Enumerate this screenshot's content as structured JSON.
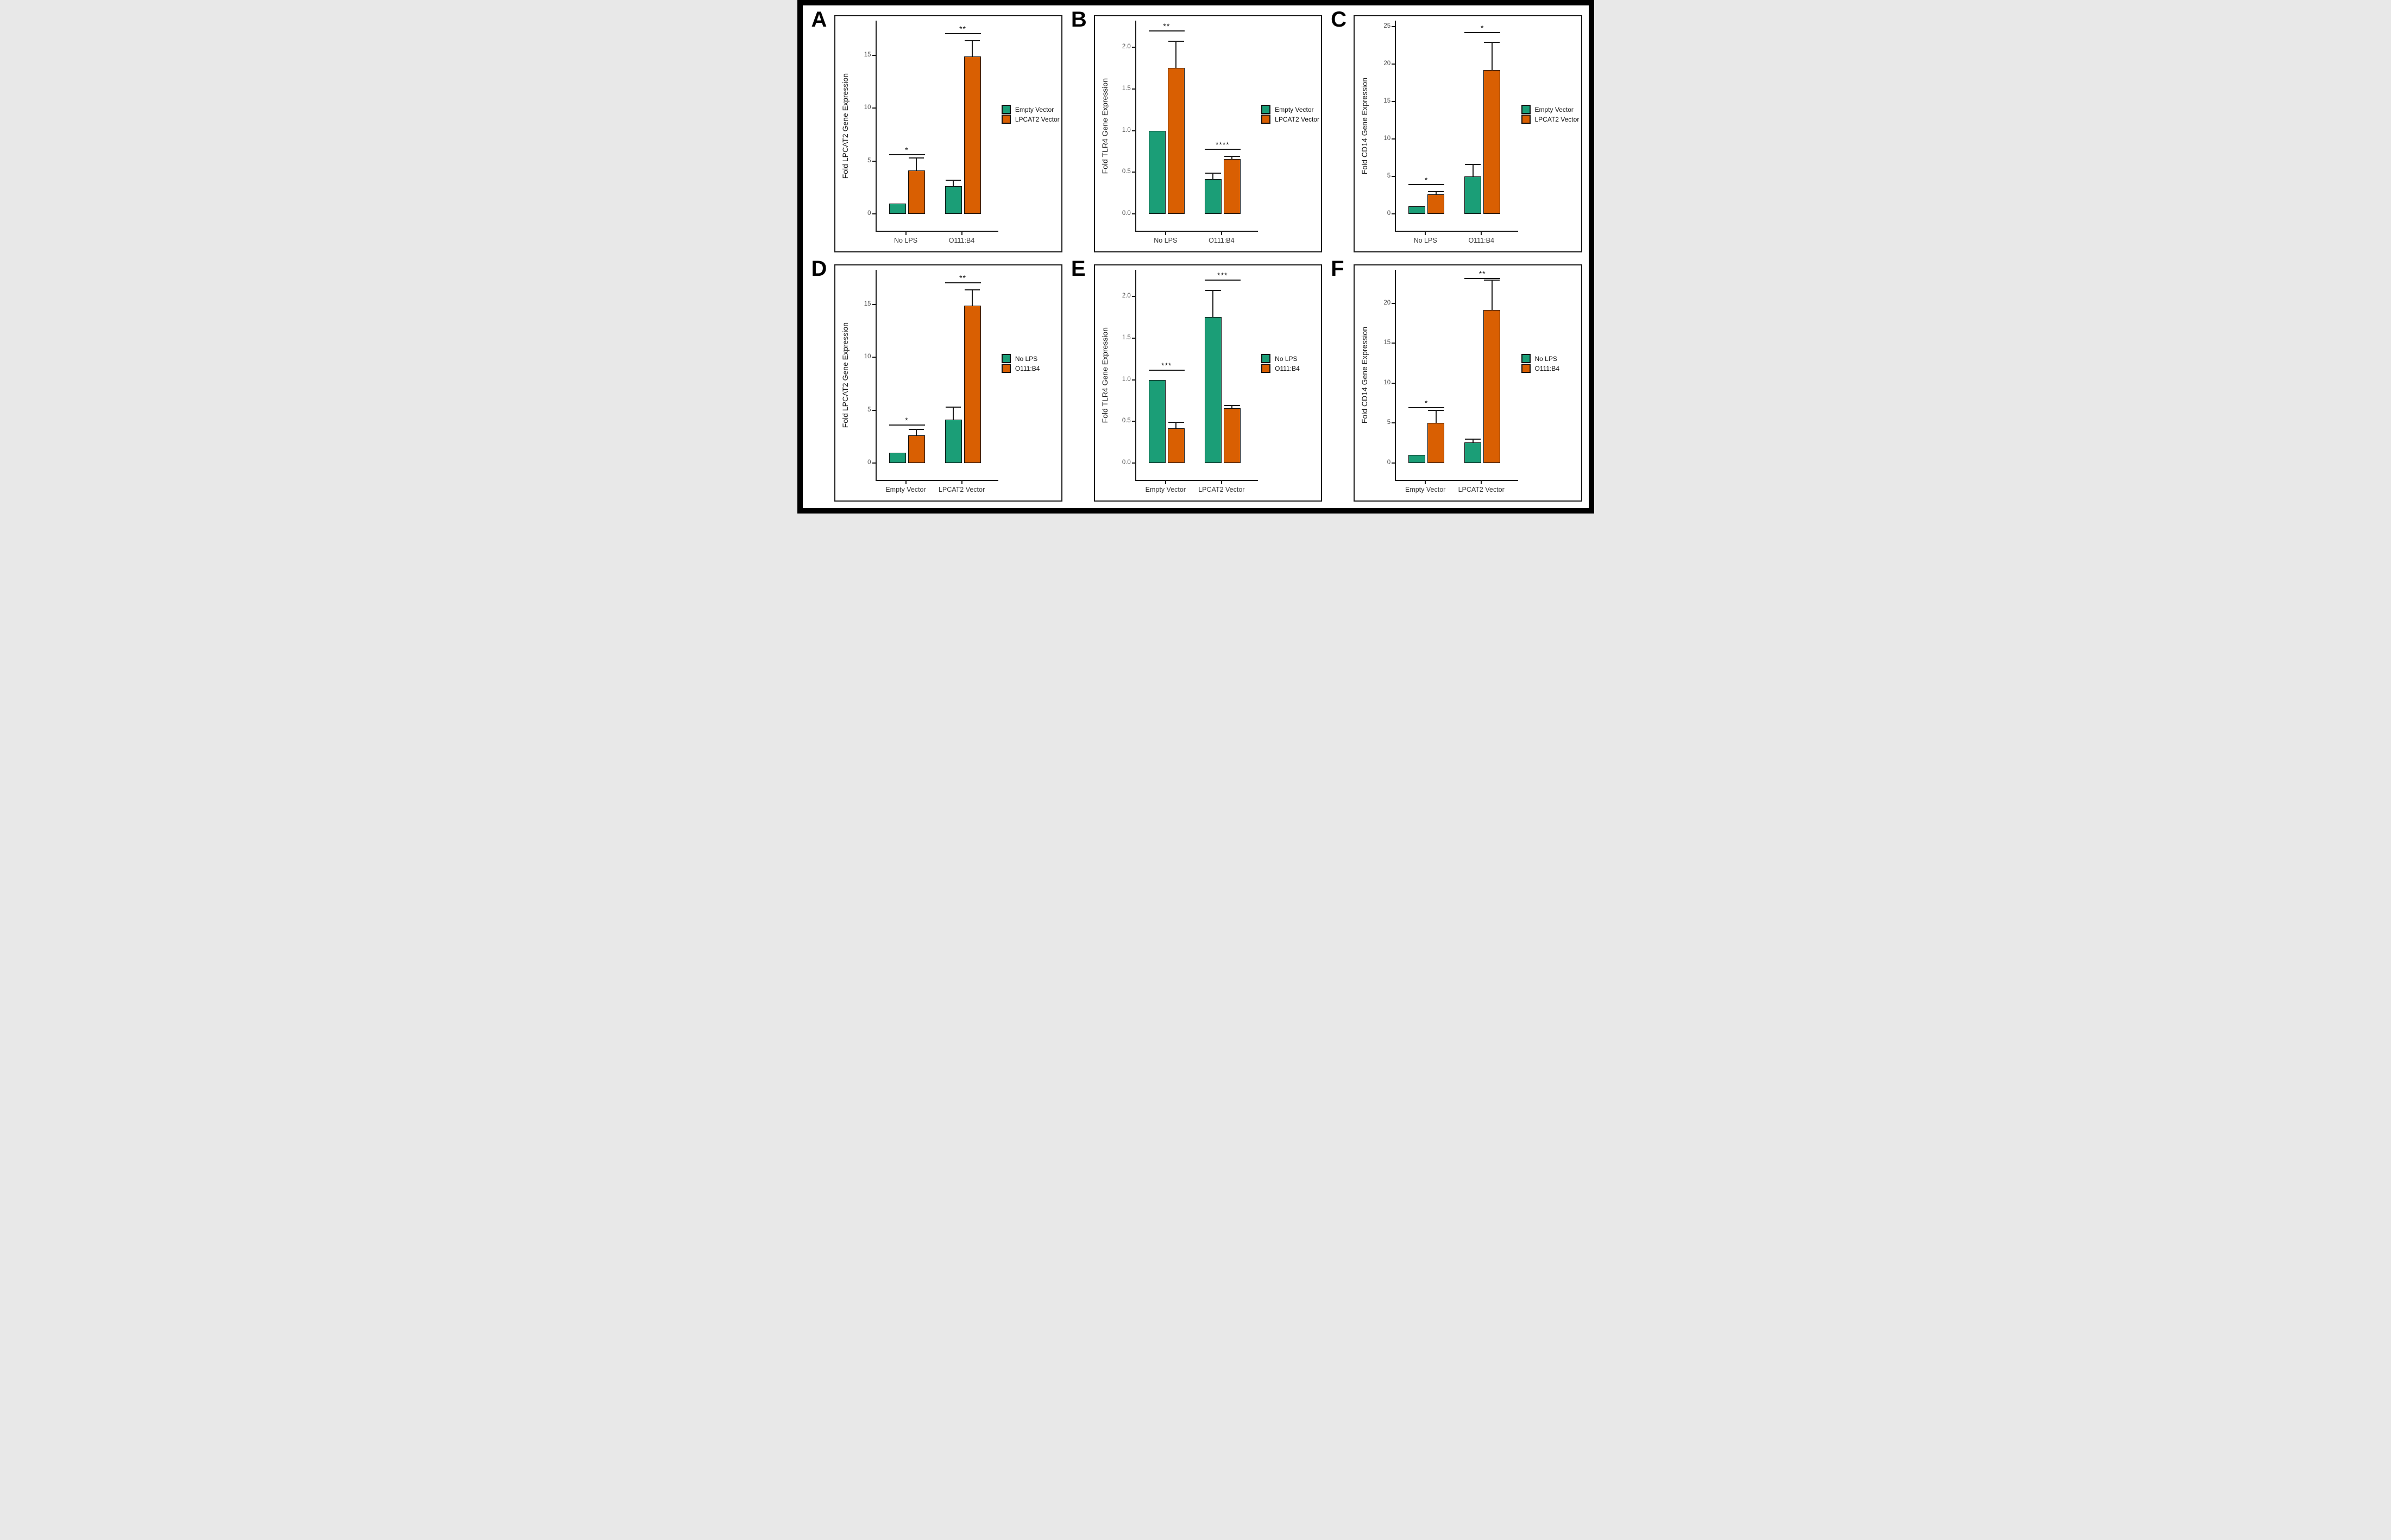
{
  "figure": {
    "background": "#ffffff",
    "outer_border_color": "#000000",
    "panel_letters": [
      "A",
      "B",
      "C",
      "D",
      "E",
      "F"
    ]
  },
  "palette": {
    "series": [
      {
        "name": "teal-green",
        "hex": "#1B9E77"
      },
      {
        "name": "orange",
        "hex": "#D95F02"
      }
    ],
    "bar_border": "#111111",
    "axis_color": "#1a1a1a",
    "tick_text_color": "#4d4d4d"
  },
  "chart_data": [
    {
      "type": "bar",
      "letter": "A",
      "ylabel": "Fold LPCAT2 Gene Expression",
      "xlabel": "",
      "categories": [
        "No LPS",
        "O111:B4"
      ],
      "legend": [
        "Empty Vector",
        "LPCAT2 Vector"
      ],
      "legend_position": "right",
      "ylim": [
        0,
        18.3
      ],
      "yticks": [
        {
          "v": 0,
          "label": "0"
        },
        {
          "v": 5,
          "label": "5"
        },
        {
          "v": 10,
          "label": "10"
        },
        {
          "v": 15,
          "label": "15"
        }
      ],
      "bars": [
        {
          "group": 0,
          "series": 0,
          "value": 1.0,
          "err_top": null
        },
        {
          "group": 0,
          "series": 1,
          "value": 4.1,
          "err_top": 5.3
        },
        {
          "group": 1,
          "series": 0,
          "value": 2.6,
          "err_top": 3.2
        },
        {
          "group": 1,
          "series": 1,
          "value": 14.9,
          "err_top": 16.4
        }
      ],
      "significance": [
        {
          "group": 0,
          "y": 5.65,
          "label": "*"
        },
        {
          "group": 1,
          "y": 17.1,
          "label": "**"
        }
      ]
    },
    {
      "type": "bar",
      "letter": "B",
      "ylabel": "Fold TLR4 Gene Expression",
      "xlabel": "",
      "categories": [
        "No LPS",
        "O111:B4"
      ],
      "legend": [
        "Empty Vector",
        "LPCAT2 Vector"
      ],
      "legend_position": "right",
      "ylim": [
        0,
        2.32
      ],
      "yticks": [
        {
          "v": 0,
          "label": "0.0"
        },
        {
          "v": 0.5,
          "label": "0.5"
        },
        {
          "v": 1.0,
          "label": "1.0"
        },
        {
          "v": 1.5,
          "label": "1.5"
        },
        {
          "v": 2.0,
          "label": "2.0"
        }
      ],
      "bars": [
        {
          "group": 0,
          "series": 0,
          "value": 1.0,
          "err_top": null
        },
        {
          "group": 0,
          "series": 1,
          "value": 1.75,
          "err_top": 2.07
        },
        {
          "group": 1,
          "series": 0,
          "value": 0.42,
          "err_top": 0.49
        },
        {
          "group": 1,
          "series": 1,
          "value": 0.66,
          "err_top": 0.69
        }
      ],
      "significance": [
        {
          "group": 0,
          "y": 2.2,
          "label": "**"
        },
        {
          "group": 1,
          "y": 0.78,
          "label": "****"
        }
      ]
    },
    {
      "type": "bar",
      "letter": "C",
      "ylabel": "Fold CD14 Gene Expression",
      "xlabel": "",
      "categories": [
        "No LPS",
        "O111:B4"
      ],
      "legend": [
        "Empty Vector",
        "LPCAT2 Vector"
      ],
      "legend_position": "right",
      "ylim": [
        0,
        25.8
      ],
      "yticks": [
        {
          "v": 0,
          "label": "0"
        },
        {
          "v": 5,
          "label": "5"
        },
        {
          "v": 10,
          "label": "10"
        },
        {
          "v": 15,
          "label": "15"
        },
        {
          "v": 20,
          "label": "20"
        },
        {
          "v": 25,
          "label": "25"
        }
      ],
      "bars": [
        {
          "group": 0,
          "series": 0,
          "value": 1.0,
          "err_top": null
        },
        {
          "group": 0,
          "series": 1,
          "value": 2.6,
          "err_top": 3.0
        },
        {
          "group": 1,
          "series": 0,
          "value": 5.0,
          "err_top": 6.6
        },
        {
          "group": 1,
          "series": 1,
          "value": 19.2,
          "err_top": 22.9
        }
      ],
      "significance": [
        {
          "group": 0,
          "y": 4.0,
          "label": "*"
        },
        {
          "group": 1,
          "y": 24.3,
          "label": "*"
        }
      ]
    },
    {
      "type": "bar",
      "letter": "D",
      "ylabel": "Fold LPCAT2 Gene Expression",
      "xlabel": "",
      "categories": [
        "Empty Vector",
        "LPCAT2 Vector"
      ],
      "legend": [
        "No LPS",
        "O111:B4"
      ],
      "legend_position": "right",
      "ylim": [
        0,
        18.3
      ],
      "yticks": [
        {
          "v": 0,
          "label": "0"
        },
        {
          "v": 5,
          "label": "5"
        },
        {
          "v": 10,
          "label": "10"
        },
        {
          "v": 15,
          "label": "15"
        }
      ],
      "bars": [
        {
          "group": 0,
          "series": 0,
          "value": 1.0,
          "err_top": null
        },
        {
          "group": 0,
          "series": 1,
          "value": 2.6,
          "err_top": 3.2
        },
        {
          "group": 1,
          "series": 0,
          "value": 4.1,
          "err_top": 5.3
        },
        {
          "group": 1,
          "series": 1,
          "value": 14.9,
          "err_top": 16.4
        }
      ],
      "significance": [
        {
          "group": 0,
          "y": 3.65,
          "label": "*"
        },
        {
          "group": 1,
          "y": 17.1,
          "label": "**"
        }
      ]
    },
    {
      "type": "bar",
      "letter": "E",
      "ylabel": "Fold TLR4 Gene Expression",
      "xlabel": "",
      "categories": [
        "Empty Vector",
        "LPCAT2 Vector"
      ],
      "legend": [
        "No LPS",
        "O111:B4"
      ],
      "legend_position": "right",
      "ylim": [
        0,
        2.32
      ],
      "yticks": [
        {
          "v": 0,
          "label": "0.0"
        },
        {
          "v": 0.5,
          "label": "0.5"
        },
        {
          "v": 1.0,
          "label": "1.0"
        },
        {
          "v": 1.5,
          "label": "1.5"
        },
        {
          "v": 2.0,
          "label": "2.0"
        }
      ],
      "bars": [
        {
          "group": 0,
          "series": 0,
          "value": 1.0,
          "err_top": null
        },
        {
          "group": 0,
          "series": 1,
          "value": 0.42,
          "err_top": 0.49
        },
        {
          "group": 1,
          "series": 0,
          "value": 1.75,
          "err_top": 2.07
        },
        {
          "group": 1,
          "series": 1,
          "value": 0.66,
          "err_top": 0.69
        }
      ],
      "significance": [
        {
          "group": 0,
          "y": 1.12,
          "label": "***"
        },
        {
          "group": 1,
          "y": 2.2,
          "label": "***"
        }
      ]
    },
    {
      "type": "bar",
      "letter": "F",
      "ylabel": "Fold CD14 Gene Expression",
      "xlabel": "",
      "categories": [
        "Empty Vector",
        "LPCAT2 Vector"
      ],
      "legend": [
        "No LPS",
        "O111:B4"
      ],
      "legend_position": "right",
      "ylim": [
        0,
        24.2
      ],
      "yticks": [
        {
          "v": 0,
          "label": "0"
        },
        {
          "v": 5,
          "label": "5"
        },
        {
          "v": 10,
          "label": "10"
        },
        {
          "v": 15,
          "label": "15"
        },
        {
          "v": 20,
          "label": "20"
        }
      ],
      "bars": [
        {
          "group": 0,
          "series": 0,
          "value": 1.0,
          "err_top": null
        },
        {
          "group": 0,
          "series": 1,
          "value": 5.0,
          "err_top": 6.6
        },
        {
          "group": 1,
          "series": 0,
          "value": 2.6,
          "err_top": 3.0
        },
        {
          "group": 1,
          "series": 1,
          "value": 19.2,
          "err_top": 22.9
        }
      ],
      "significance": [
        {
          "group": 0,
          "y": 7.0,
          "label": "*"
        },
        {
          "group": 1,
          "y": 23.2,
          "label": "**"
        }
      ]
    }
  ]
}
